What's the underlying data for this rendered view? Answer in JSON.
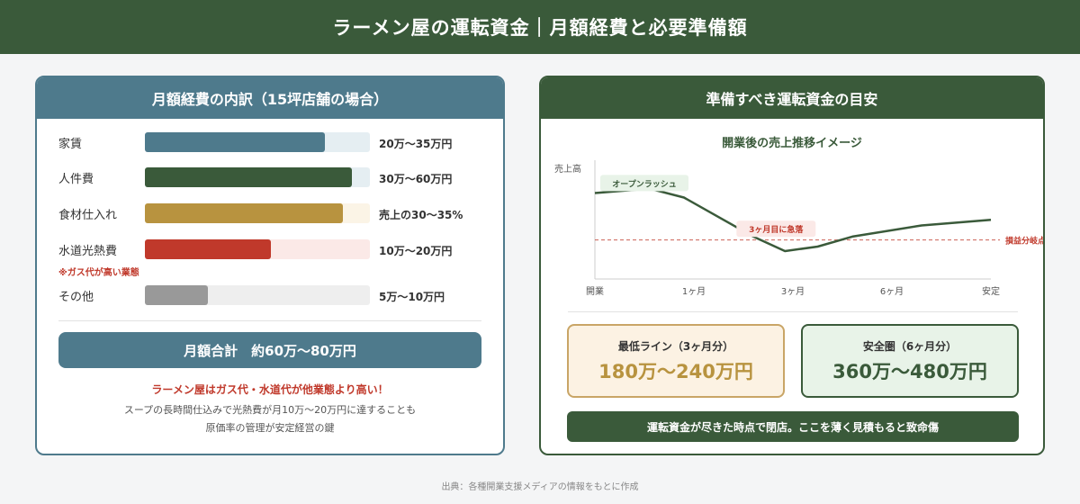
{
  "header": {
    "title": "ラーメン屋の運転資金｜月額経費と必要準備額"
  },
  "costs": {
    "title": "月額経費の内訳（15坪店舗の場合）",
    "items": [
      {
        "label": "家賃",
        "range": "20万〜35万円",
        "level": 0.8,
        "color": "#4e7a8c",
        "track": "#e5eef2",
        "sub": ""
      },
      {
        "label": "人件費",
        "range": "30万〜60万円",
        "level": 0.92,
        "color": "#3a5a3a",
        "track": "#e5eef2",
        "sub": ""
      },
      {
        "label": "食材仕入れ",
        "range": "売上の30〜35%",
        "level": 0.88,
        "color": "#b8933f",
        "track": "#fbf4e6",
        "sub": ""
      },
      {
        "label": "水道光熱費",
        "range": "10万〜20万円",
        "level": 0.56,
        "color": "#c0392b",
        "track": "#fbe9e7",
        "sub": "※ガス代が高い業態"
      },
      {
        "label": "その他",
        "range": "5万〜10万円",
        "level": 0.28,
        "color": "#999999",
        "track": "#eeeeee",
        "sub": ""
      }
    ],
    "total": "月額合計　約60万〜80万円",
    "note_title": "ラーメン屋はガス代・水道代が他業態より高い！",
    "note_lines": [
      "スープの長時間仕込みで光熱費が月10万〜20万円に達することも",
      "原価率の管理が安定経営の鍵"
    ]
  },
  "reserve": {
    "title": "準備すべき運転資金の目安",
    "min_label": "最低ライン（3ヶ月分）",
    "min_value": "180万〜240万円",
    "safe_label": "安全圏（6ヶ月分）",
    "safe_value": "360万〜480万円",
    "warning": "運転資金が尽きた時点で閉店。ここを薄く見積もると致命傷"
  },
  "chart_data": {
    "type": "line",
    "title": "開業後の売上推移イメージ",
    "ylabel": "売上高",
    "xlabel": "",
    "x_ticks": [
      "開業",
      "1ヶ月",
      "3ヶ月",
      "6ヶ月",
      "安定"
    ],
    "x_tick_positions": [
      0,
      1,
      2,
      3,
      4
    ],
    "xlim": [
      0,
      4
    ],
    "ylim": [
      0,
      100
    ],
    "series": [
      {
        "x": [
          0,
          0.55,
          0.9,
          1.6,
          1.92,
          2.25,
          2.6,
          3.3,
          4.0
        ],
        "y": [
          77,
          81,
          73,
          38,
          25,
          29,
          38,
          48,
          53
        ]
      }
    ],
    "breakeven": 35,
    "breakeven_label": "損益分岐点",
    "annotations": [
      {
        "text": "オープンラッシュ",
        "x": 0.5,
        "y": 86,
        "color": "#3a5a3a",
        "bg": "#e8f3e8"
      },
      {
        "text": "3ヶ月目に急落",
        "x": 1.83,
        "y": 45,
        "color": "#c0392b",
        "bg": "#fbe9e7"
      }
    ],
    "line_color": "#3a5a3a",
    "breakeven_color": "#c0392b"
  },
  "source": "出典：各種開業支援メディアの情報をもとに作成"
}
